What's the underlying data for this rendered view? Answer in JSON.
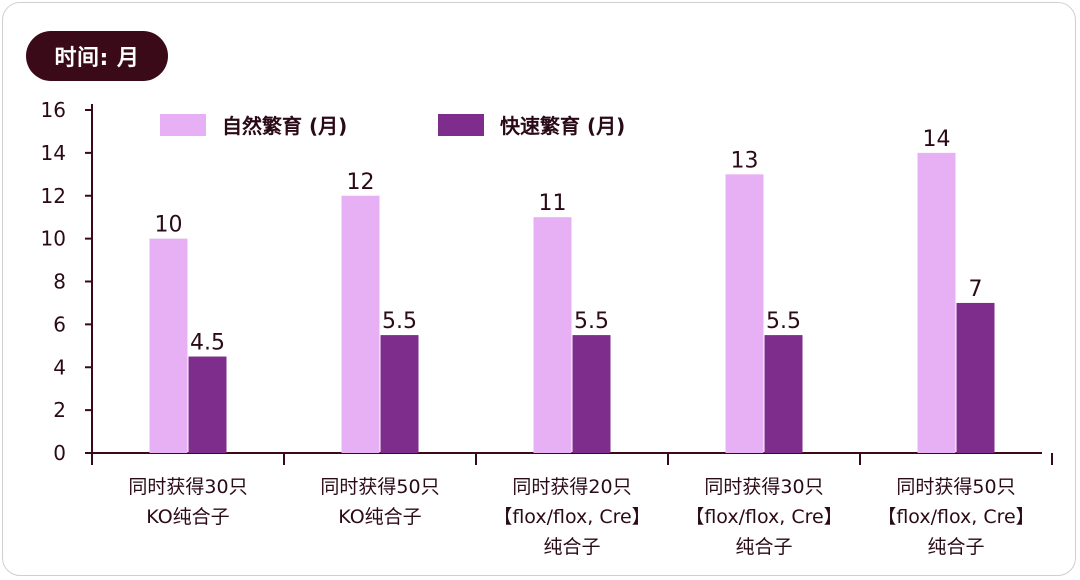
{
  "header": {
    "unit_label": "时间: 月"
  },
  "colors": {
    "pill_bg": "#3a0a18",
    "axis": "#3a0a18",
    "text": "#2b0a18",
    "series_natural": "#e8b0f4",
    "series_fast": "#7e2d8c"
  },
  "chart_data": {
    "type": "bar",
    "title": "",
    "xlabel": "",
    "ylabel": "",
    "ylim": [
      0,
      16
    ],
    "yticks": [
      0,
      2,
      4,
      6,
      8,
      10,
      12,
      14,
      16
    ],
    "grid": false,
    "legend_position": "top",
    "categories": [
      [
        "同时获得30只",
        "KO纯合子"
      ],
      [
        "同时获得50只",
        "KO纯合子"
      ],
      [
        "同时获得20只",
        "【flox/flox, Cre】",
        "纯合子"
      ],
      [
        "同时获得30只",
        "【flox/flox, Cre】",
        "纯合子"
      ],
      [
        "同时获得50只",
        "【flox/flox, Cre】",
        "纯合子"
      ]
    ],
    "series": [
      {
        "name": "自然繁育 (月)",
        "values": [
          10,
          12,
          11,
          13,
          14
        ]
      },
      {
        "name": "快速繁育 (月)",
        "values": [
          4.5,
          5.5,
          5.5,
          5.5,
          7
        ]
      }
    ]
  }
}
